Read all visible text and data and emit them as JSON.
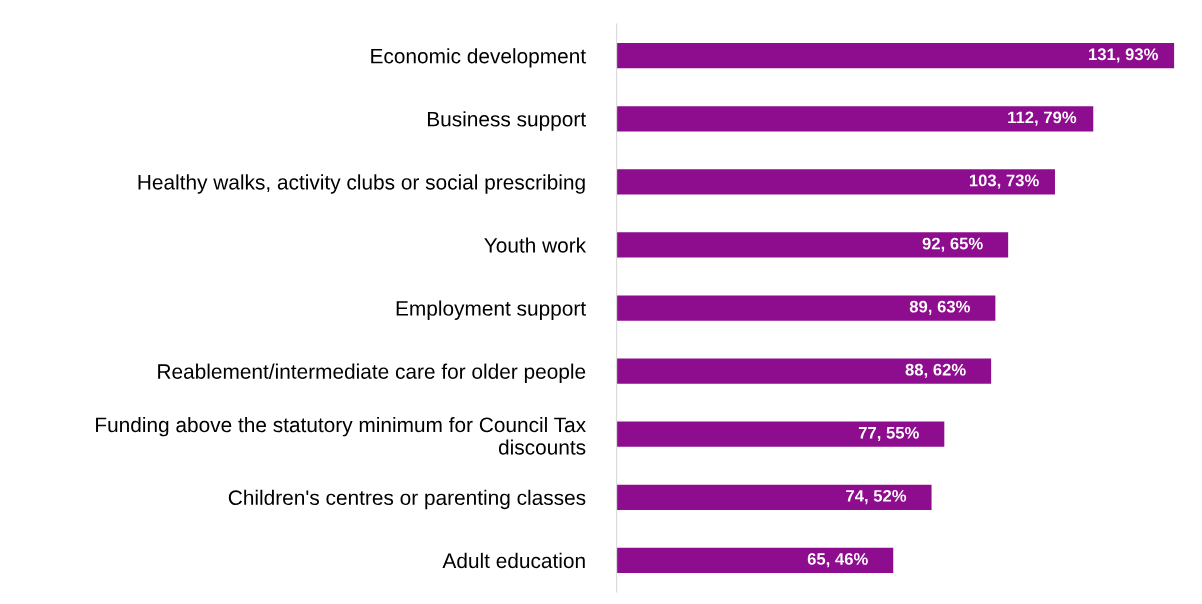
{
  "chart_data": {
    "type": "bar",
    "orientation": "horizontal",
    "color": "#8e0c8e",
    "categories": [
      "Economic development",
      "Business support",
      "Healthy walks, activity clubs or social prescribing",
      "Youth work",
      "Employment support",
      "Reablement/intermediate care for older people",
      "Funding above the statutory minimum for Council Tax discounts",
      "Children's centres or parenting classes",
      "Adult education"
    ],
    "values": [
      131,
      112,
      103,
      92,
      89,
      88,
      77,
      74,
      65
    ],
    "value_labels": [
      "131, 93%",
      "112, 79%",
      "103, 73%",
      "92, 65%",
      "89, 63%",
      "88, 62%",
      "77, 55%",
      "74, 52%",
      "65, 46%"
    ],
    "tick_labels": "y",
    "grid": false,
    "legend": false
  }
}
